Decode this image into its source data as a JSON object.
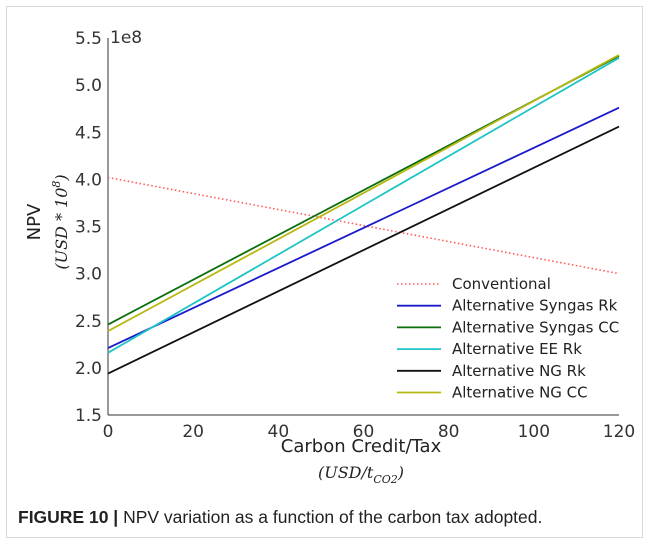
{
  "caption": {
    "lead": "FIGURE 10 |",
    "text": "NPV variation as a function of the carbon tax adopted."
  },
  "chart_data": {
    "type": "line",
    "xlabel": "Carbon Credit/Tax",
    "xunit": "(USD/t_CO2)",
    "ylabel": "NPV",
    "yunit": "(USD * 10^8)",
    "y_offset_label": "1e8",
    "xlim": [
      0,
      120
    ],
    "ylim": [
      1.5,
      5.5
    ],
    "xticks": [
      0,
      20,
      40,
      60,
      80,
      100,
      120
    ],
    "yticks": [
      1.5,
      2.0,
      2.5,
      3.0,
      3.5,
      4.0,
      4.5,
      5.0,
      5.5
    ],
    "grid": false,
    "legend_position": "lower-right",
    "x": [
      0,
      120
    ],
    "series": [
      {
        "name": "Conventional",
        "values": [
          4.02,
          3.0
        ],
        "color": "#ff5a5a",
        "style": "dotted"
      },
      {
        "name": "Alternative Syngas Rk",
        "values": [
          2.21,
          4.76
        ],
        "color": "#1a1acc",
        "style": "solid"
      },
      {
        "name": "Alternative Syngas CC",
        "values": [
          2.46,
          5.31
        ],
        "color": "#0a6e0a",
        "style": "solid"
      },
      {
        "name": "Alternative EE Rk",
        "values": [
          2.16,
          5.29
        ],
        "color": "#1fc4c4",
        "style": "solid"
      },
      {
        "name": "Alternative NG Rk",
        "values": [
          1.94,
          4.56
        ],
        "color": "#111111",
        "style": "solid"
      },
      {
        "name": "Alternative NG CC",
        "values": [
          2.39,
          5.32
        ],
        "color": "#b8b814",
        "style": "solid"
      }
    ]
  }
}
